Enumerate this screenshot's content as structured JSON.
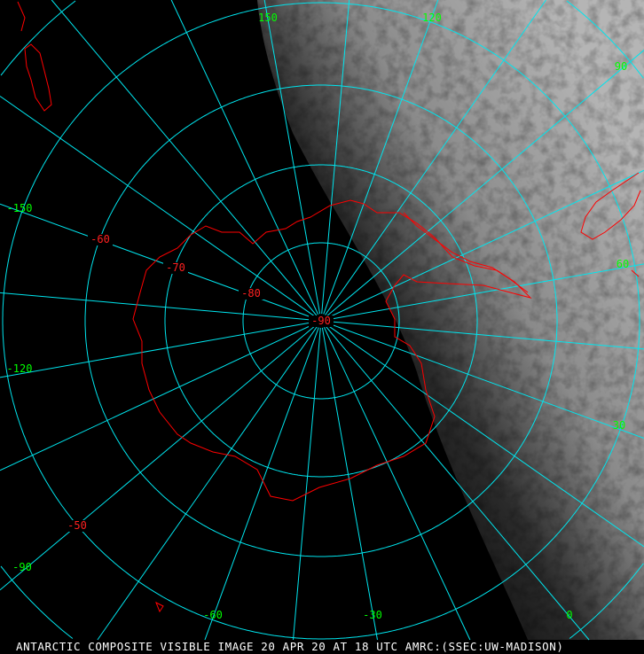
{
  "caption": "ANTARCTIC COMPOSITE VISIBLE IMAGE 20 APR 20 AT 18 UTC AMRC:(SSEC:UW-MADISON)",
  "map": {
    "projection": "south polar stereographic",
    "grid_color": "#00e5ee",
    "coastline_color": "#ff0000",
    "longitude_label_color": "#00ff00",
    "latitude_label_color": "#ff2020",
    "longitude_labels": [
      "150",
      "120",
      "90",
      "60",
      "30",
      "0",
      "-30",
      "-60",
      "-90",
      "-120",
      "-150"
    ],
    "latitude_labels": [
      "-90",
      "-80",
      "-70",
      "-60",
      "-50"
    ]
  }
}
